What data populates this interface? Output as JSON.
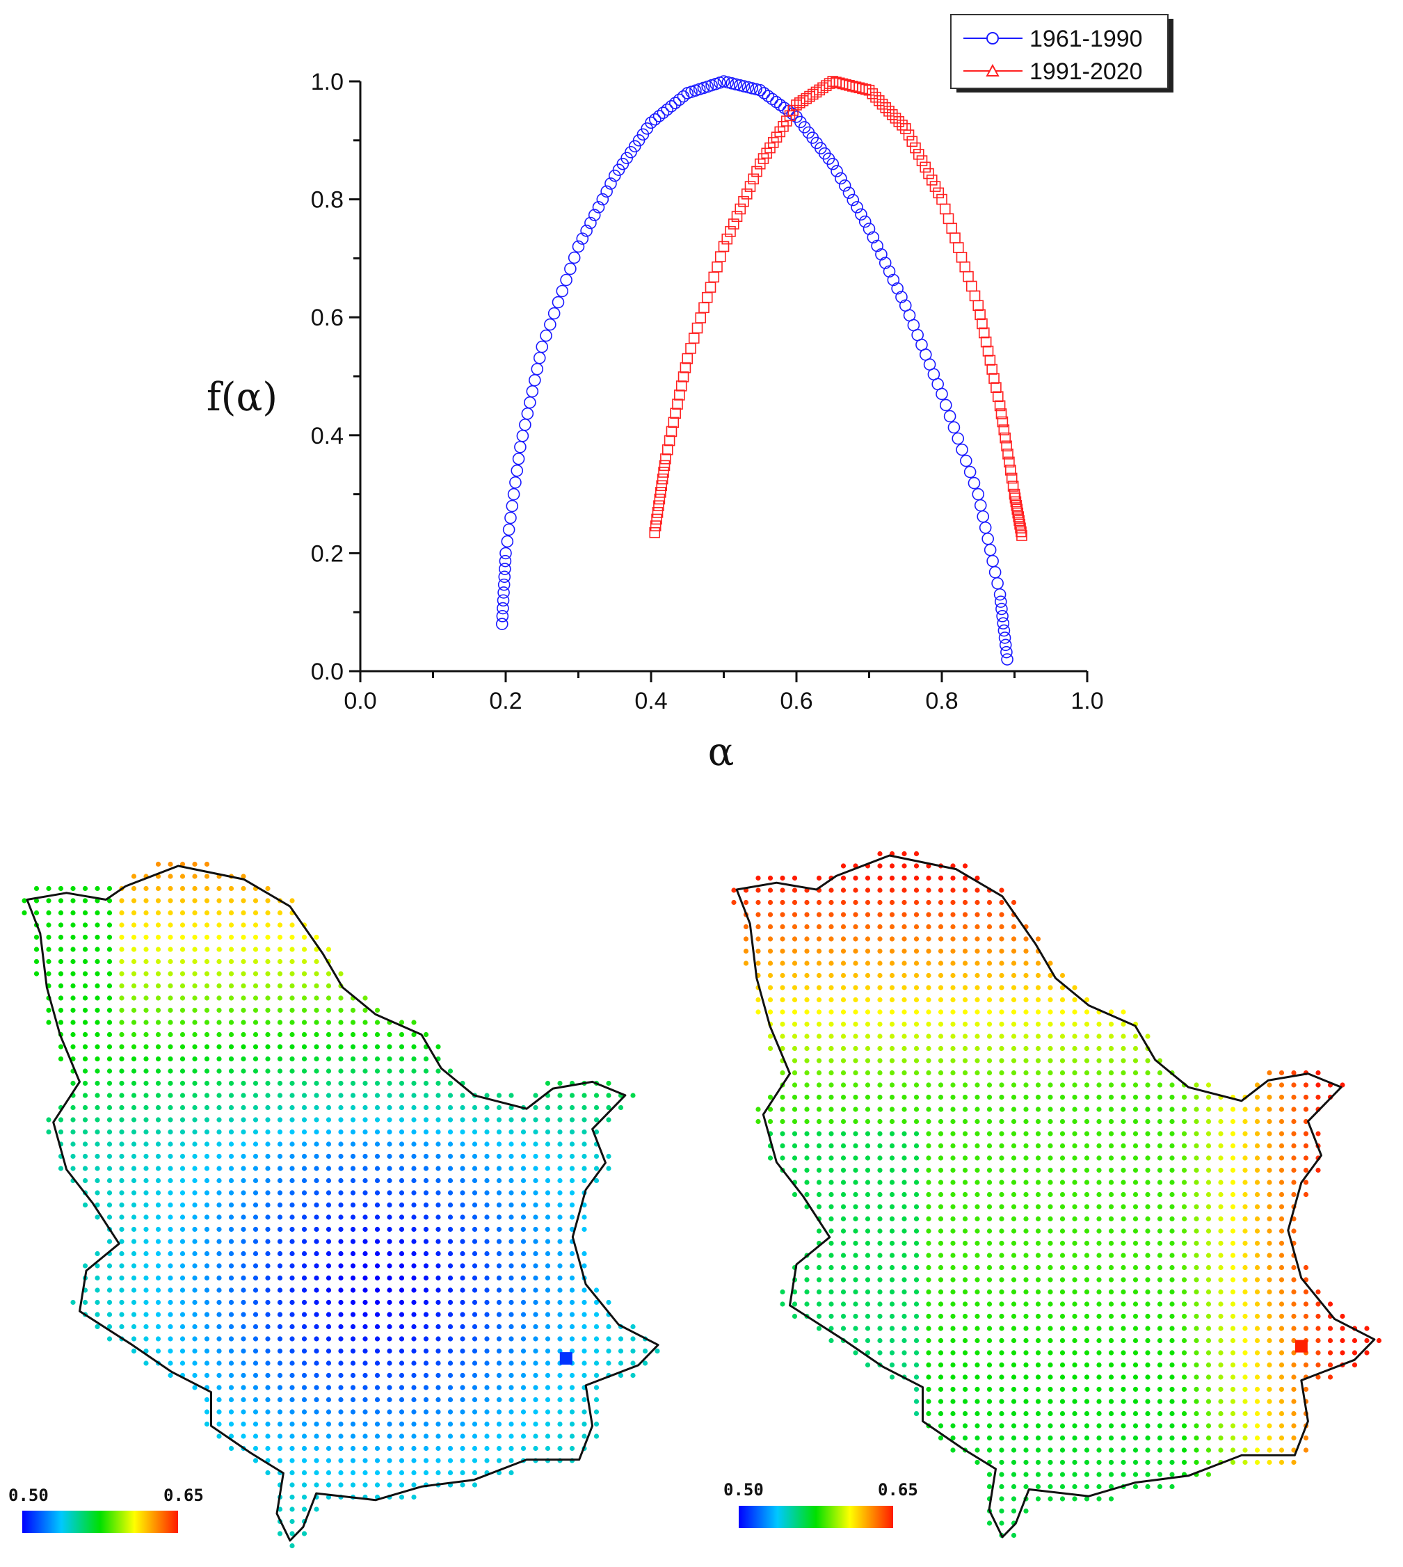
{
  "chart_data": [
    {
      "type": "scatter",
      "xlabel": "α",
      "ylabel": "f(α)",
      "xlim": [
        0.0,
        1.0
      ],
      "ylim": [
        0.0,
        1.0
      ],
      "x_ticks": [
        "0.0",
        "0.2",
        "0.4",
        "0.6",
        "0.8",
        "1.0"
      ],
      "y_ticks": [
        "0.0",
        "0.2",
        "0.4",
        "0.6",
        "0.8",
        "1.0"
      ],
      "legend": "top-right",
      "grid": false,
      "series": [
        {
          "name": "1961-1990",
          "marker": "circle",
          "color": "#1a1aff",
          "points": [
            [
              0.195,
              0.08
            ],
            [
              0.2,
              0.2
            ],
            [
              0.22,
              0.38
            ],
            [
              0.25,
              0.55
            ],
            [
              0.3,
              0.72
            ],
            [
              0.35,
              0.84
            ],
            [
              0.4,
              0.93
            ],
            [
              0.45,
              0.98
            ],
            [
              0.5,
              1.0
            ],
            [
              0.55,
              0.985
            ],
            [
              0.6,
              0.94
            ],
            [
              0.65,
              0.86
            ],
            [
              0.7,
              0.75
            ],
            [
              0.75,
              0.62
            ],
            [
              0.8,
              0.47
            ],
            [
              0.85,
              0.3
            ],
            [
              0.88,
              0.13
            ],
            [
              0.89,
              0.02
            ]
          ]
        },
        {
          "name": "1991-2020",
          "marker": "square",
          "color": "#ff2020",
          "points": [
            [
              0.405,
              0.235
            ],
            [
              0.42,
              0.36
            ],
            [
              0.45,
              0.53
            ],
            [
              0.5,
              0.72
            ],
            [
              0.55,
              0.86
            ],
            [
              0.6,
              0.96
            ],
            [
              0.65,
              1.0
            ],
            [
              0.7,
              0.985
            ],
            [
              0.75,
              0.92
            ],
            [
              0.8,
              0.8
            ],
            [
              0.85,
              0.62
            ],
            [
              0.88,
              0.45
            ],
            [
              0.9,
              0.3
            ],
            [
              0.91,
              0.23
            ]
          ]
        }
      ]
    },
    {
      "type": "heatmap",
      "colorbar_min_label": "0.50",
      "colorbar_max_label": "0.65",
      "colorbar_range": [
        0.5,
        0.65
      ]
    },
    {
      "type": "heatmap",
      "colorbar_min_label": "0.50",
      "colorbar_max_label": "0.65",
      "colorbar_range": [
        0.5,
        0.65
      ]
    }
  ],
  "colors": {
    "series1": "#1a1aff",
    "series2": "#ff2020",
    "map_outline": "#111111"
  }
}
